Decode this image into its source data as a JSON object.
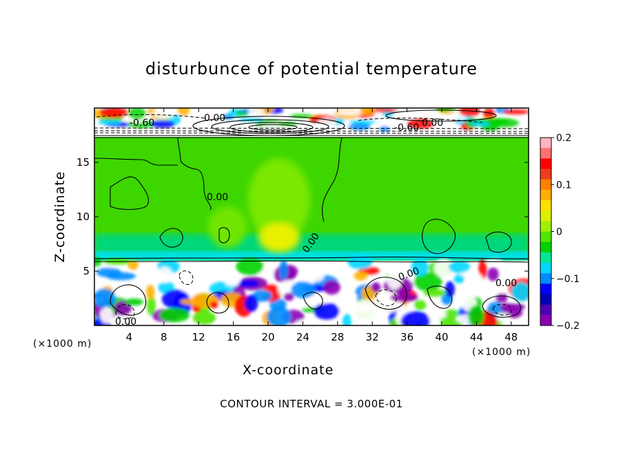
{
  "figure": {
    "title": "disturbunce of potential temperature",
    "x_unit_left": "(×1000 m)",
    "x_unit_right": "(×1000 m)",
    "footer": "CONTOUR INTERVAL = 3.000E-01"
  },
  "chart_data": {
    "type": "heatmap",
    "title": "disturbunce of potential temperature",
    "xlabel": "X-coordinate",
    "ylabel": "Z-coordinate",
    "x_unit": "(×1000 m)",
    "xlim": [
      0,
      50
    ],
    "ylim": [
      0,
      20
    ],
    "x_ticks": [
      4,
      8,
      12,
      16,
      20,
      24,
      28,
      32,
      36,
      40,
      44,
      48
    ],
    "y_ticks": [
      5,
      10,
      15
    ],
    "colorbar": {
      "range": [
        -0.2,
        0.2
      ],
      "ticks": [
        0.2,
        0.1,
        0,
        -0.1,
        -0.2
      ],
      "tick_labels": [
        "0.2",
        "0.1",
        "0",
        "−0.1",
        "−0.2"
      ],
      "colors": [
        "#FFB4C0",
        "#FF7070",
        "#FF0000",
        "#F03C1E",
        "#FF8000",
        "#FFB000",
        "#FFE000",
        "#DCF000",
        "#A0F000",
        "#50E600",
        "#00D200",
        "#00E696",
        "#00D7FF",
        "#008CFF",
        "#0000FF",
        "#0000B4",
        "#5000B4",
        "#8C00B4"
      ]
    },
    "contour_interval": "3.000E-01",
    "contour_labels": [
      "-0.60",
      "0.00",
      "-0.60",
      "0.00",
      "0.00",
      "0.00",
      "0.00",
      "0.00",
      "0.00"
    ],
    "layers": [
      {
        "z_range": [
          0,
          5.8
        ],
        "pattern": "turbulent boundary layer",
        "values": [
          -0.2,
          0.2
        ]
      },
      {
        "z_range": [
          5.8,
          17.5
        ],
        "pattern": "near-zero disturbance",
        "values": [
          -0.05,
          0.08
        ]
      },
      {
        "z_range": [
          17.5,
          20
        ],
        "pattern": "stratospheric waves",
        "values": [
          -0.2,
          0.2
        ]
      }
    ]
  }
}
